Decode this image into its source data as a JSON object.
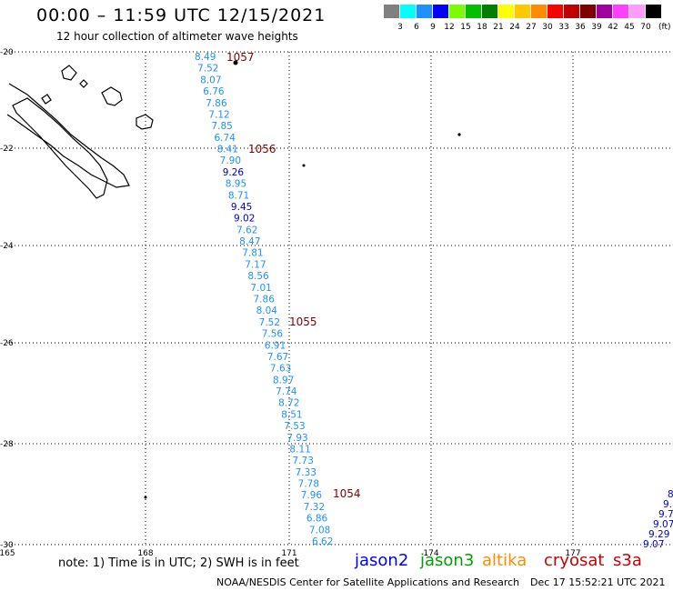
{
  "header": {
    "title": "00:00 – 11:59 UTC 12/15/2021",
    "subtitle": "12 hour collection of altimeter wave heights"
  },
  "legend": {
    "colors": [
      "#808080",
      "#00ffff",
      "#1e90ff",
      "#0000ff",
      "#7cfc00",
      "#00c000",
      "#008000",
      "#ffff00",
      "#ffc800",
      "#ff8c00",
      "#ff0000",
      "#c00000",
      "#800000",
      "#a000a0",
      "#ff40ff",
      "#ff9cff",
      "#000000"
    ],
    "labels": [
      "3",
      "6",
      "9",
      "12",
      "15",
      "18",
      "21",
      "24",
      "27",
      "30",
      "33",
      "36",
      "39",
      "42",
      "45",
      "70"
    ],
    "unit": "(ft)"
  },
  "map": {
    "lon_ticks": [
      "165",
      "168",
      "171",
      "174",
      "177"
    ],
    "lat_ticks": [
      "-20",
      "-22",
      "-24",
      "-26",
      "-28",
      "-30"
    ],
    "lon_range": [
      165,
      179
    ],
    "lat_range": [
      -20,
      -30
    ]
  },
  "track_values": [
    {
      "text": "8.49",
      "color": "#1e90ff"
    },
    {
      "text": "7.52",
      "color": "#1e90ff"
    },
    {
      "text": "8.07",
      "color": "#1e90ff"
    },
    {
      "text": "6.76",
      "color": "#1e90ff"
    },
    {
      "text": "7.86",
      "color": "#1e90ff"
    },
    {
      "text": "7.12",
      "color": "#1e90ff"
    },
    {
      "text": "7.85",
      "color": "#1e90ff"
    },
    {
      "text": "6.74",
      "color": "#1e90ff"
    },
    {
      "text": "8.41",
      "color": "#1e90ff"
    },
    {
      "text": "7.90",
      "color": "#1e90ff"
    },
    {
      "text": "9.26",
      "color": "#0000cd"
    },
    {
      "text": "8.95",
      "color": "#1e90ff"
    },
    {
      "text": "8.71",
      "color": "#1e90ff"
    },
    {
      "text": "9.45",
      "color": "#0000cd"
    },
    {
      "text": "9.02",
      "color": "#0000cd"
    },
    {
      "text": "7.62",
      "color": "#1e90ff"
    },
    {
      "text": "8.47",
      "color": "#1e90ff"
    },
    {
      "text": "7.81",
      "color": "#1e90ff"
    },
    {
      "text": "7.17",
      "color": "#1e90ff"
    },
    {
      "text": "8.56",
      "color": "#1e90ff"
    },
    {
      "text": "7.01",
      "color": "#1e90ff"
    },
    {
      "text": "7.86",
      "color": "#1e90ff"
    },
    {
      "text": "8.04",
      "color": "#1e90ff"
    },
    {
      "text": "7.52",
      "color": "#1e90ff"
    },
    {
      "text": "7.56",
      "color": "#1e90ff"
    },
    {
      "text": "6.91",
      "color": "#1e90ff"
    },
    {
      "text": "7.67",
      "color": "#1e90ff"
    },
    {
      "text": "7.63",
      "color": "#1e90ff"
    },
    {
      "text": "8.97",
      "color": "#1e90ff"
    },
    {
      "text": "7.74",
      "color": "#1e90ff"
    },
    {
      "text": "8.72",
      "color": "#1e90ff"
    },
    {
      "text": "8.51",
      "color": "#1e90ff"
    },
    {
      "text": "7.53",
      "color": "#1e90ff"
    },
    {
      "text": "7.93",
      "color": "#1e90ff"
    },
    {
      "text": "8.11",
      "color": "#1e90ff"
    },
    {
      "text": "7.73",
      "color": "#1e90ff"
    },
    {
      "text": "7.33",
      "color": "#1e90ff"
    },
    {
      "text": "7.78",
      "color": "#1e90ff"
    },
    {
      "text": "7.96",
      "color": "#1e90ff"
    },
    {
      "text": "7.32",
      "color": "#1e90ff"
    },
    {
      "text": "6.86",
      "color": "#1e90ff"
    },
    {
      "text": "7.08",
      "color": "#1e90ff"
    },
    {
      "text": "6.62",
      "color": "#1e90ff"
    }
  ],
  "time_labels": [
    "1057",
    "1056",
    "1055",
    "1054"
  ],
  "edge_values": [
    "8",
    "9.",
    "9.7",
    "9.07",
    "9.29",
    "9.07"
  ],
  "footer": {
    "note": "note: 1) Time is in UTC; 2) SWH is in feet",
    "satellites": [
      {
        "name": "jason2",
        "color": "#0000ff"
      },
      {
        "name": "jason3",
        "color": "#00a000"
      },
      {
        "name": "altika",
        "color": "#ff8c00"
      },
      {
        "name": "cryosat",
        "color": "#cc0000"
      },
      {
        "name": "s3a",
        "color": "#cc0000"
      }
    ],
    "credit": "NOAA/NESDIS Center for Satellite Applications and Research",
    "timestamp": "Dec 17 15:52:21 UTC 2021"
  }
}
